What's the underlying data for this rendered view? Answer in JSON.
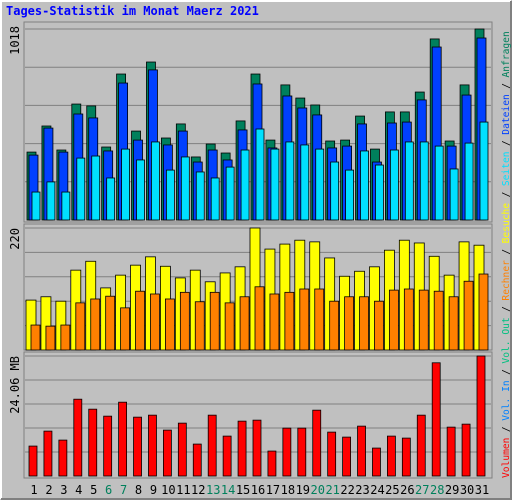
{
  "chart_data": [
    {
      "type": "bar",
      "title": "Tages-Statistik im Monat Maerz 2021",
      "ylim": [
        0,
        1018
      ],
      "yticks": [
        1018
      ],
      "grid_divisions": 5,
      "series": [
        {
          "name": "Anfragen",
          "color": "#00805c",
          "values": [
            362,
            501,
            373,
            618,
            608,
            389,
            778,
            474,
            842,
            437,
            512,
            336,
            405,
            357,
            528,
            778,
            426,
            720,
            650,
            613,
            421,
            426,
            554,
            378,
            576,
            576,
            682,
            965,
            421,
            720,
            1018
          ]
        },
        {
          "name": "Dateien",
          "color": "#0040ff",
          "values": [
            346,
            490,
            362,
            565,
            544,
            368,
            730,
            426,
            800,
            400,
            474,
            309,
            373,
            320,
            480,
            725,
            384,
            661,
            597,
            560,
            384,
            394,
            512,
            309,
            517,
            522,
            640,
            922,
            394,
            666,
            970
          ]
        },
        {
          "name": "Seiten",
          "color": "#00e0ff",
          "values": [
            149,
            203,
            149,
            330,
            341,
            224,
            378,
            320,
            416,
            266,
            336,
            256,
            224,
            282,
            373,
            485,
            378,
            416,
            400,
            378,
            309,
            266,
            368,
            293,
            373,
            416,
            416,
            394,
            272,
            410,
            522
          ]
        }
      ]
    },
    {
      "type": "bar",
      "ylim": [
        0,
        220
      ],
      "yticks": [
        220
      ],
      "grid_divisions": 5,
      "series": [
        {
          "name": "Besuche",
          "color": "#ffff00",
          "values": [
            90,
            96,
            88,
            144,
            160,
            112,
            135,
            153,
            168,
            151,
            130,
            144,
            123,
            139,
            150,
            220,
            182,
            191,
            198,
            195,
            166,
            133,
            142,
            150,
            180,
            198,
            193,
            169,
            135,
            195,
            189
          ]
        },
        {
          "name": "Rechner",
          "color": "#ff8000",
          "values": [
            45,
            43,
            45,
            85,
            92,
            97,
            76,
            106,
            101,
            92,
            104,
            87,
            104,
            85,
            96,
            114,
            101,
            104,
            110,
            110,
            88,
            96,
            96,
            88,
            108,
            110,
            108,
            106,
            96,
            124,
            137
          ]
        }
      ]
    },
    {
      "type": "bar",
      "ylim": [
        0,
        24.06
      ],
      "yticks": [
        {
          "value": 24.06,
          "label": "24.06 MB"
        }
      ],
      "grid_divisions": 5,
      "categories": [
        "1",
        "2",
        "3",
        "4",
        "5",
        "6",
        "7",
        "8",
        "9",
        "10",
        "11",
        "12",
        "13",
        "14",
        "15",
        "16",
        "17",
        "18",
        "19",
        "20",
        "21",
        "22",
        "23",
        "24",
        "25",
        "26",
        "27",
        "28",
        "29",
        "30",
        "31"
      ],
      "category_color": "#000000",
      "weekend_color": "#00805c",
      "weekends": [
        "6",
        "7",
        "13",
        "14",
        "20",
        "21",
        "27",
        "28"
      ],
      "series": [
        {
          "name": "Volumen",
          "color": "#ff0000",
          "values": [
            6.0,
            9.0,
            7.2,
            15.4,
            13.4,
            12.0,
            14.8,
            11.8,
            12.2,
            9.2,
            10.6,
            6.4,
            12.2,
            8.0,
            11.0,
            11.2,
            5.0,
            9.6,
            9.6,
            13.2,
            8.8,
            7.8,
            10.0,
            5.6,
            8.0,
            7.6,
            12.2,
            22.7,
            9.8,
            10.4,
            24.06
          ]
        }
      ],
      "extra_legend": [
        {
          "text": "Vol. In",
          "color": "#0080ff"
        },
        {
          "text": "Vol. Out",
          "color": "#00c080"
        }
      ],
      "legend_separator": "/",
      "separator_color": "#000000"
    }
  ]
}
